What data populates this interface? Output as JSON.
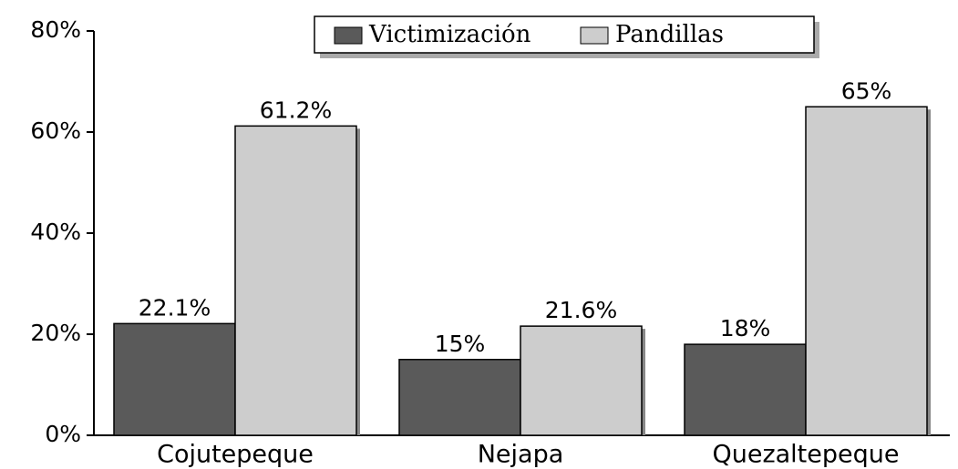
{
  "chart_data": {
    "type": "bar",
    "categories": [
      "Cojutepeque",
      "Nejapa",
      "Quezaltepeque"
    ],
    "series": [
      {
        "name": "Victimización",
        "color": "#5a5a5a",
        "values": [
          22.1,
          15,
          18
        ],
        "value_labels": [
          "22.1%",
          "15%",
          "18%"
        ]
      },
      {
        "name": "Pandillas",
        "color": "#cdcdcd",
        "values": [
          61.2,
          21.6,
          65
        ],
        "value_labels": [
          "61.2%",
          "21.6%",
          "65%"
        ]
      }
    ],
    "ylim": [
      0,
      80
    ],
    "yticks": [
      {
        "value": 0,
        "label": "0%"
      },
      {
        "value": 20,
        "label": "20%"
      },
      {
        "value": 40,
        "label": "40%"
      },
      {
        "value": 60,
        "label": "60%"
      },
      {
        "value": 80,
        "label": "80%"
      }
    ],
    "legend": "top"
  }
}
